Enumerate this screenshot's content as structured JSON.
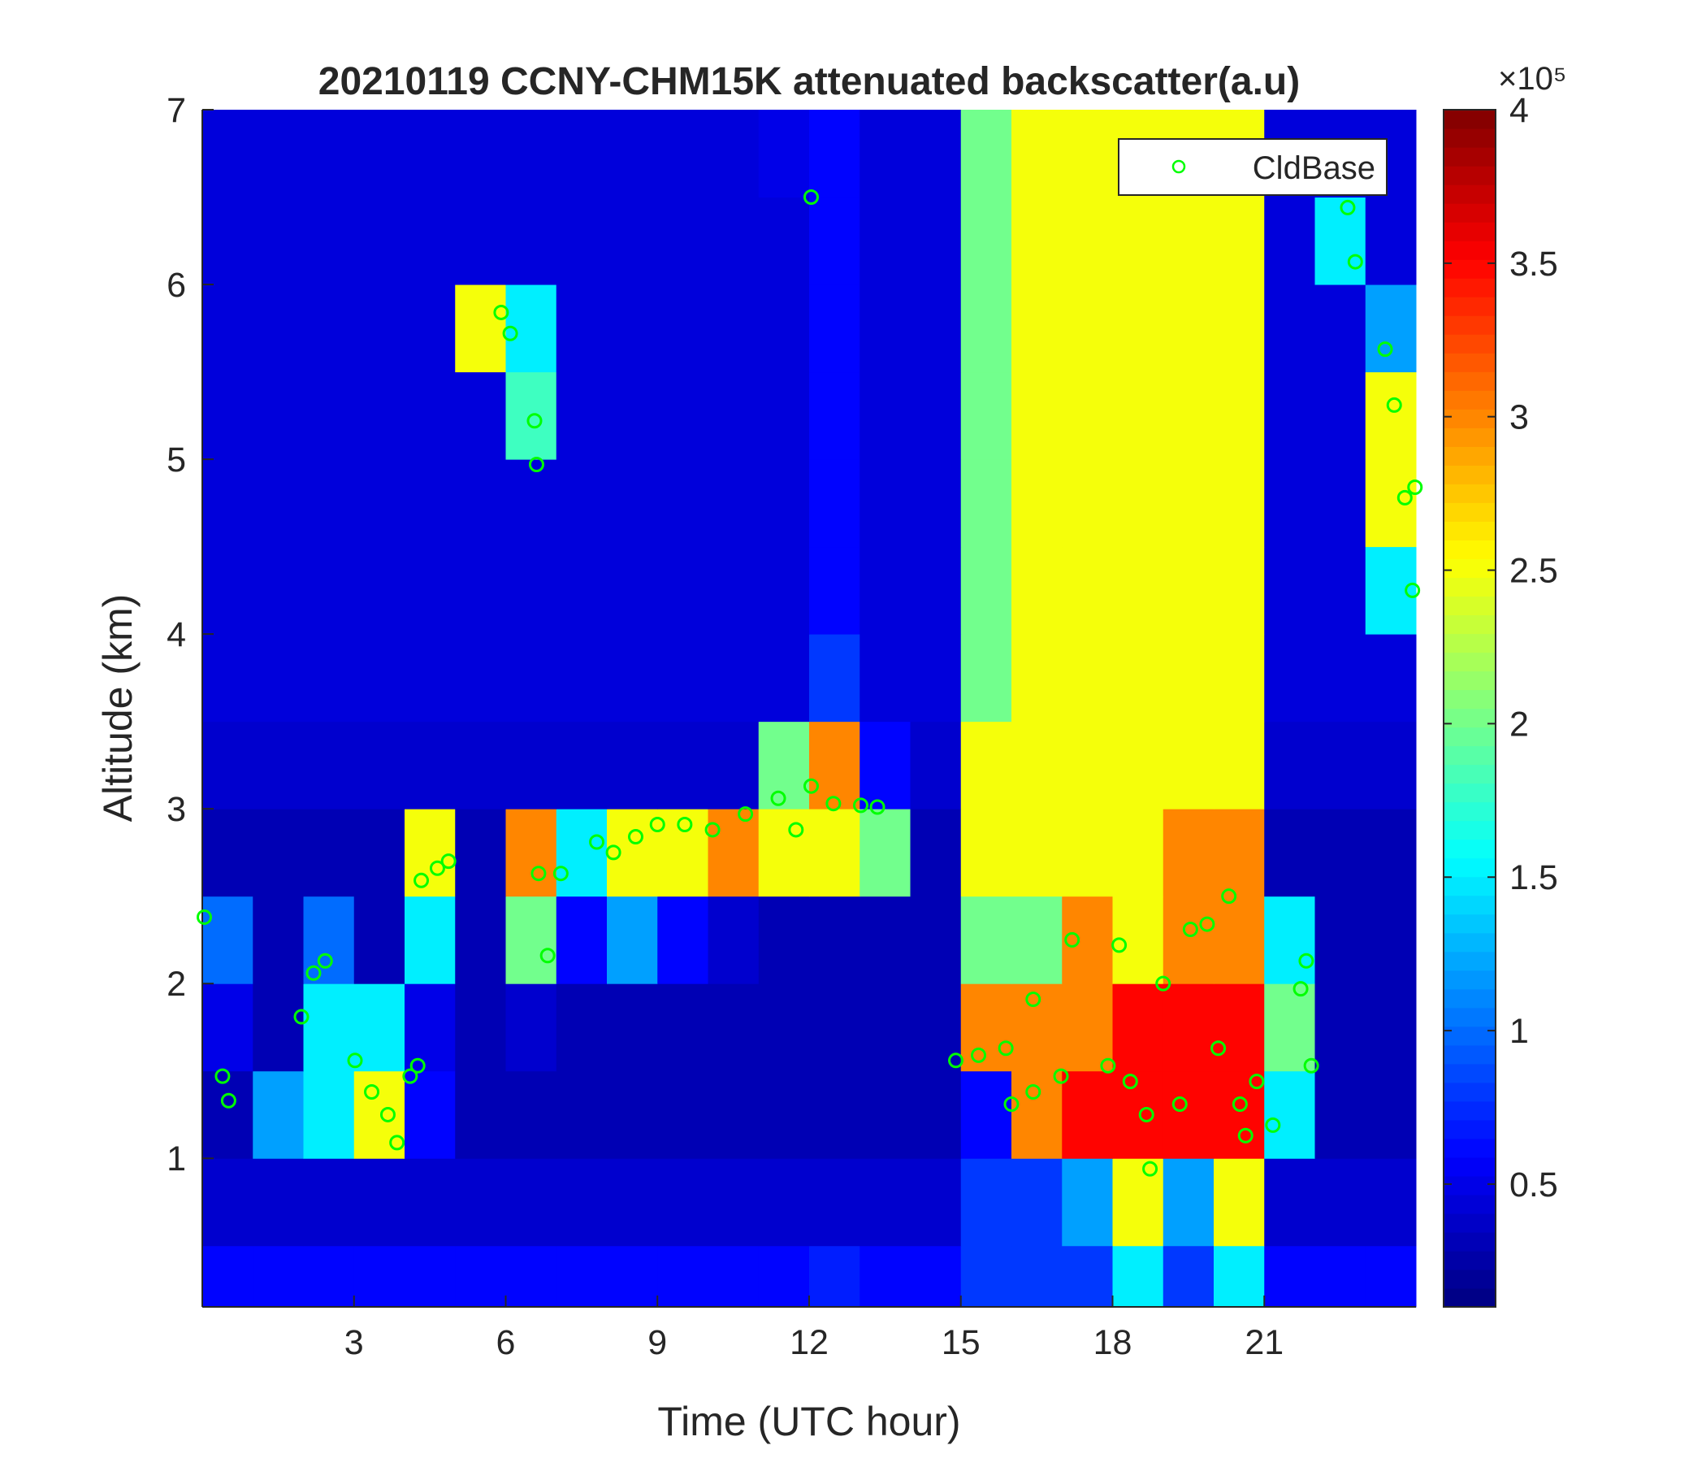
{
  "chart_data": {
    "type": "heatmap",
    "title": "20210119 CCNY-CHM15K attenuated backscatter(a.u)",
    "x_label": "Time (UTC hour)",
    "y_label": "Altitude (km)",
    "xlim": [
      0,
      24
    ],
    "ylim": [
      0.15,
      7
    ],
    "xticks": [
      3,
      6,
      9,
      12,
      15,
      18,
      21
    ],
    "yticks": [
      1,
      2,
      3,
      4,
      5,
      6,
      7
    ],
    "colormap": "jet",
    "x_edges": [
      0,
      1,
      2,
      3,
      4,
      5,
      6,
      7,
      8,
      9,
      10,
      11,
      12,
      13,
      14,
      15,
      16,
      17,
      18,
      19,
      20,
      21,
      22,
      23,
      24
    ],
    "y_edges": [
      0.15,
      0.5,
      1,
      1.5,
      2,
      2.5,
      3,
      3.5,
      4,
      4.5,
      5,
      5.5,
      6,
      6.5,
      7
    ],
    "z": [
      [
        0.6,
        0.6,
        0.6,
        0.6,
        0.6,
        0.6,
        0.6,
        0.6,
        0.6,
        0.6,
        0.6,
        0.6,
        0.7,
        0.6,
        0.6,
        0.8,
        0.8,
        0.8,
        1.5,
        0.8,
        1.5,
        0.6,
        0.6,
        0.6
      ],
      [
        0.4,
        0.4,
        0.4,
        0.4,
        0.4,
        0.4,
        0.4,
        0.4,
        0.4,
        0.4,
        0.4,
        0.4,
        0.4,
        0.4,
        0.4,
        0.8,
        0.8,
        1.2,
        2.5,
        1.2,
        2.5,
        0.4,
        0.4,
        0.4
      ],
      [
        0.3,
        1.2,
        1.5,
        2.5,
        0.6,
        0.3,
        0.3,
        0.3,
        0.3,
        0.3,
        0.3,
        0.3,
        0.3,
        0.3,
        0.3,
        0.6,
        3,
        3.5,
        3.5,
        3.5,
        3.5,
        1.5,
        0.3,
        0.3
      ],
      [
        0.5,
        0.3,
        1.5,
        1.5,
        0.5,
        0.3,
        0.4,
        0.3,
        0.3,
        0.3,
        0.3,
        0.3,
        0.3,
        0.3,
        0.3,
        3,
        3,
        3,
        3.5,
        3.5,
        3.5,
        2,
        0.3,
        0.3
      ],
      [
        1,
        0.3,
        1,
        0.3,
        1.5,
        0.3,
        2,
        0.6,
        1.2,
        0.6,
        0.4,
        0.3,
        0.3,
        0.3,
        0.3,
        2,
        2,
        3,
        2.5,
        3,
        3,
        1.5,
        0.3,
        0.3
      ],
      [
        0.3,
        0.3,
        0.3,
        0.3,
        2.5,
        0.3,
        3,
        1.5,
        2.5,
        2.5,
        3,
        2.5,
        2.5,
        2,
        0.3,
        2.5,
        2.5,
        2.5,
        2.5,
        3,
        3,
        0.3,
        0.3,
        0.3
      ],
      [
        0.4,
        0.4,
        0.4,
        0.4,
        0.4,
        0.4,
        0.4,
        0.4,
        0.4,
        0.4,
        0.4,
        2,
        3,
        0.6,
        0.4,
        2.5,
        2.5,
        2.5,
        2.5,
        2.5,
        2.5,
        0.4,
        0.4,
        0.4
      ],
      [
        0.45,
        0.45,
        0.45,
        0.45,
        0.45,
        0.45,
        0.45,
        0.45,
        0.45,
        0.45,
        0.45,
        0.45,
        0.8,
        0.45,
        0.45,
        2,
        2.5,
        2.5,
        2.5,
        2.5,
        2.5,
        0.45,
        0.45,
        0.45
      ],
      [
        0.45,
        0.45,
        0.45,
        0.45,
        0.45,
        0.45,
        0.45,
        0.45,
        0.45,
        0.45,
        0.45,
        0.45,
        0.6,
        0.45,
        0.45,
        2,
        2.5,
        2.5,
        2.5,
        2.5,
        2.5,
        0.45,
        0.45,
        1.5
      ],
      [
        0.45,
        0.45,
        0.45,
        0.45,
        0.45,
        0.45,
        0.45,
        0.45,
        0.45,
        0.45,
        0.45,
        0.45,
        0.6,
        0.45,
        0.45,
        2,
        2.5,
        2.5,
        2.5,
        2.5,
        2.5,
        0.45,
        0.45,
        2.5
      ],
      [
        0.45,
        0.45,
        0.45,
        0.45,
        0.45,
        0.45,
        1.8,
        0.45,
        0.45,
        0.45,
        0.45,
        0.45,
        0.6,
        0.45,
        0.45,
        2,
        2.5,
        2.5,
        2.5,
        2.5,
        2.5,
        0.45,
        0.45,
        2.5
      ],
      [
        0.45,
        0.45,
        0.45,
        0.45,
        0.45,
        2.5,
        1.5,
        0.45,
        0.45,
        0.45,
        0.45,
        0.45,
        0.6,
        0.45,
        0.45,
        2,
        2.5,
        2.5,
        2.5,
        2.5,
        2.5,
        0.45,
        0.45,
        1.2
      ],
      [
        0.45,
        0.45,
        0.45,
        0.45,
        0.45,
        0.45,
        0.45,
        0.45,
        0.45,
        0.45,
        0.45,
        0.45,
        0.6,
        0.45,
        0.45,
        2,
        2.5,
        2.5,
        2.5,
        2.5,
        2.5,
        0.45,
        1.5,
        0.45
      ],
      [
        0.45,
        0.45,
        0.45,
        0.45,
        0.45,
        0.45,
        0.45,
        0.45,
        0.45,
        0.45,
        0.45,
        0.5,
        0.6,
        0.45,
        0.45,
        2,
        2.5,
        2.5,
        2.5,
        2.5,
        2.5,
        0.45,
        0.45,
        0.45
      ]
    ],
    "colorbar": {
      "lim": [
        0.1,
        4
      ],
      "ticks": [
        0.5,
        1,
        1.5,
        2,
        2.5,
        3,
        3.5,
        4
      ],
      "exponent_label": "×10⁵"
    },
    "legend": "northeast",
    "series": [
      {
        "name": "CldBase",
        "type": "scatter",
        "color": "#00ff00",
        "x": [
          0.04,
          0.4,
          0.52,
          1.96,
          2.2,
          2.43,
          3.02,
          3.35,
          3.67,
          3.85,
          4.11,
          4.26,
          4.33,
          4.65,
          4.87,
          5.91,
          6.09,
          6.57,
          6.61,
          6.65,
          6.83,
          7.09,
          7.8,
          8.13,
          8.57,
          9.0,
          9.54,
          10.09,
          10.74,
          11.39,
          11.74,
          12.04,
          12.04,
          12.48,
          13.02,
          13.35,
          14.9,
          15.35,
          15.89,
          16.0,
          16.43,
          16.43,
          16.98,
          17.2,
          17.91,
          18.13,
          18.35,
          18.67,
          18.74,
          19.0,
          19.33,
          19.54,
          19.87,
          20.09,
          20.3,
          20.52,
          20.63,
          20.85,
          21.17,
          21.72,
          21.83,
          21.93,
          22.65,
          22.8,
          23.39,
          23.57,
          23.78,
          23.93,
          23.98
        ],
        "y": [
          2.38,
          1.47,
          1.33,
          1.81,
          2.06,
          2.13,
          1.56,
          1.38,
          1.25,
          1.09,
          1.47,
          1.53,
          2.59,
          2.66,
          2.7,
          5.84,
          5.72,
          5.22,
          4.97,
          2.63,
          2.16,
          2.63,
          2.81,
          2.75,
          2.84,
          2.91,
          2.91,
          2.88,
          2.97,
          3.06,
          2.88,
          3.13,
          6.5,
          3.03,
          3.02,
          3.01,
          1.56,
          1.59,
          1.63,
          1.31,
          1.38,
          1.91,
          1.47,
          2.25,
          1.53,
          2.22,
          1.44,
          1.25,
          0.94,
          2.0,
          1.31,
          2.31,
          2.34,
          1.63,
          2.5,
          1.31,
          1.13,
          1.44,
          1.19,
          1.97,
          2.13,
          1.53,
          6.44,
          6.13,
          5.63,
          5.31,
          4.78,
          4.25,
          4.84
        ]
      }
    ]
  }
}
